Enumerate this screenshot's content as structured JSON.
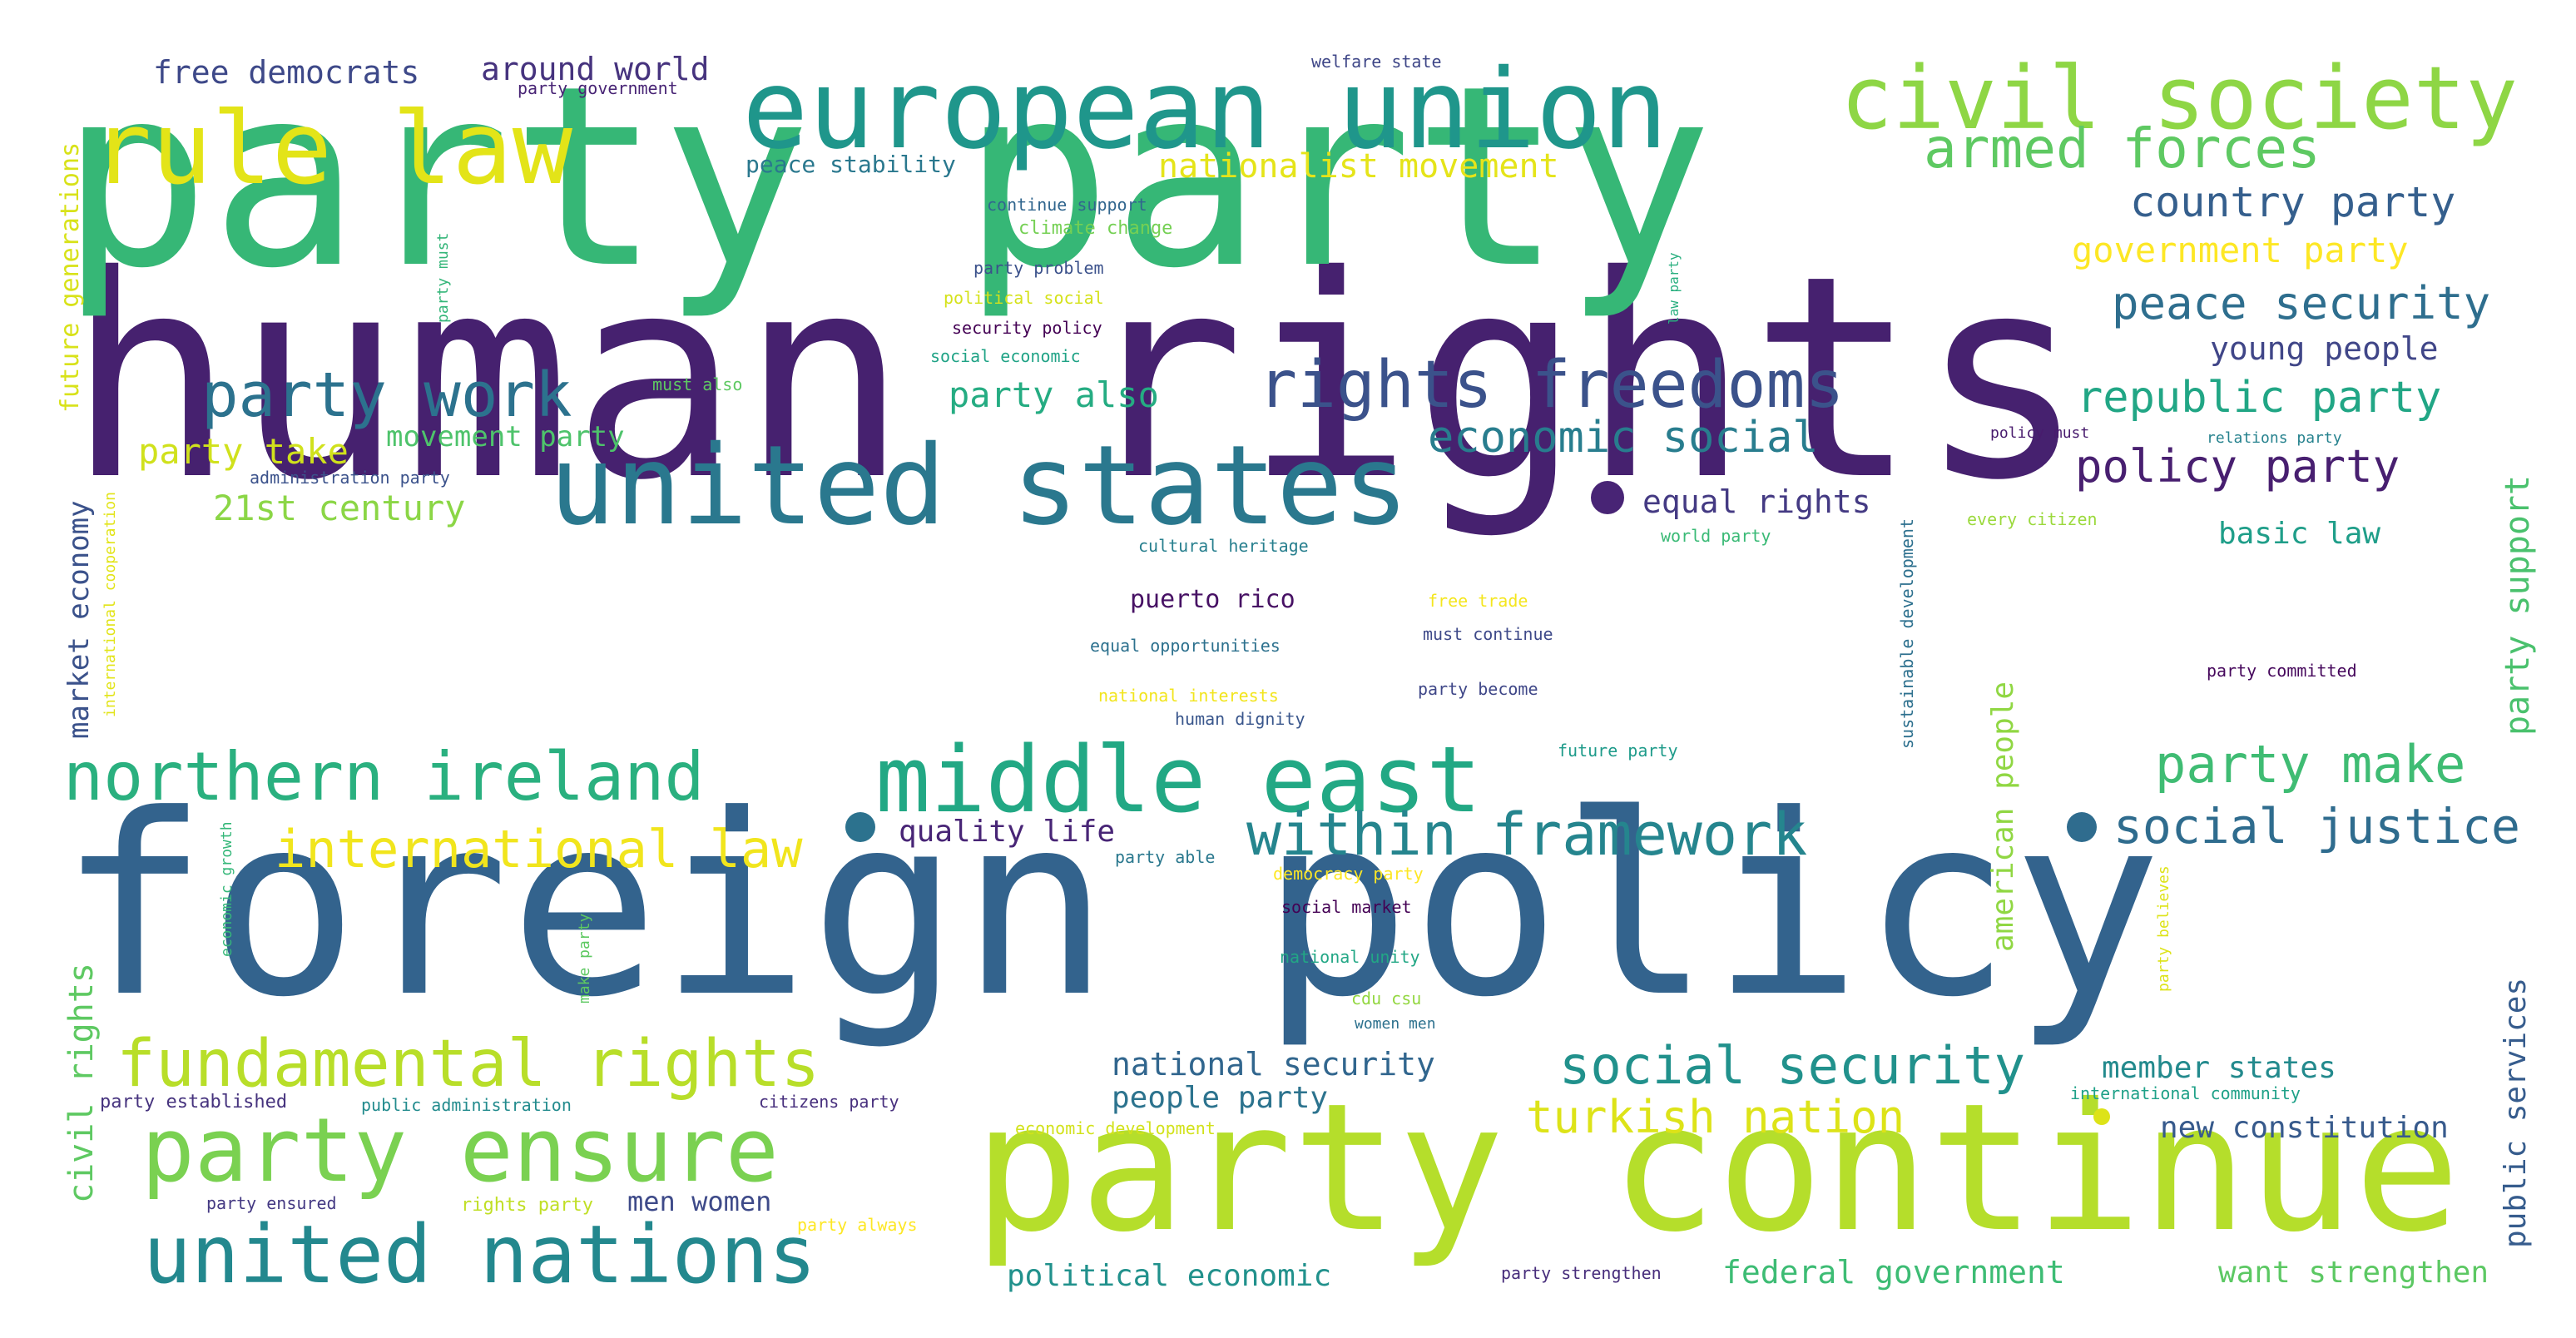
{
  "words": [
    {
      "text": "human rights",
      "color": "#46216f"
    },
    {
      "text": "party party",
      "color": "#36b776"
    },
    {
      "text": "foreign policy",
      "color": "#33638d"
    },
    {
      "text": "party continue",
      "color": "#b5de2b"
    },
    {
      "text": "european union",
      "color": "#1f968b"
    },
    {
      "text": "united states",
      "color": "#2a788e"
    },
    {
      "text": "rule law",
      "color": "#e3e418"
    },
    {
      "text": "civil society",
      "color": "#8ed645"
    },
    {
      "text": "middle east",
      "color": "#22a884"
    },
    {
      "text": "party ensure",
      "color": "#7ad151"
    },
    {
      "text": "united nations",
      "color": "#23888e"
    },
    {
      "text": "northern ireland",
      "color": "#2ab07f"
    },
    {
      "text": "fundamental rights",
      "color": "#b8de29"
    },
    {
      "text": "rights freedoms",
      "color": "#3b528b"
    },
    {
      "text": "party work",
      "color": "#2c728e"
    },
    {
      "text": "within framework",
      "color": "#25858e"
    },
    {
      "text": "social security",
      "color": "#21918c"
    },
    {
      "text": "armed forces",
      "color": "#5ec962"
    },
    {
      "text": "international law",
      "color": "#f1e51d"
    },
    {
      "text": "economic social",
      "color": "#287d8e"
    },
    {
      "text": "party make",
      "color": "#3fbc73"
    },
    {
      "text": "social justice",
      "color": "#2f6c8e"
    },
    {
      "text": "peace security",
      "color": "#2e6e8e"
    },
    {
      "text": "country party",
      "color": "#355f8d"
    },
    {
      "text": "republic party",
      "color": "#21a685"
    },
    {
      "text": "policy party",
      "color": "#481f70"
    },
    {
      "text": "turkish nation",
      "color": "#dde318"
    },
    {
      "text": "government party",
      "color": "#fde725"
    },
    {
      "text": "free democrats",
      "color": "#3e4989"
    },
    {
      "text": "around world",
      "color": "#46337e"
    },
    {
      "text": "nationalist movement",
      "color": "#e5e419"
    },
    {
      "text": "party also",
      "color": "#25ac82"
    },
    {
      "text": "21st century",
      "color": "#8bd646"
    },
    {
      "text": "party take",
      "color": "#d0e11c"
    },
    {
      "text": "movement party",
      "color": "#4ec36b"
    },
    {
      "text": "equal rights",
      "color": "#443a83"
    },
    {
      "text": "young people",
      "color": "#404688"
    },
    {
      "text": "basic law",
      "color": "#1f9e89"
    },
    {
      "text": "quality life",
      "color": "#482576"
    },
    {
      "text": "national security",
      "color": "#31668e"
    },
    {
      "text": "people party",
      "color": "#2c738e"
    },
    {
      "text": "member states",
      "color": "#238a8d"
    },
    {
      "text": "new constitution",
      "color": "#375a8c"
    },
    {
      "text": "federal government",
      "color": "#3dbc74"
    },
    {
      "text": "want strengthen",
      "color": "#5cc863"
    },
    {
      "text": "political economic",
      "color": "#21918c"
    },
    {
      "text": "men women",
      "color": "#3e4a89"
    },
    {
      "text": "puerto rico",
      "color": "#471164"
    },
    {
      "text": "peace stability",
      "color": "#2a788e"
    },
    {
      "text": "market economy",
      "color": "#3b528b"
    },
    {
      "text": "civil rights",
      "color": "#5ec962"
    },
    {
      "text": "future generations",
      "color": "#d8e219"
    },
    {
      "text": "party support",
      "color": "#4ac16d"
    },
    {
      "text": "public services",
      "color": "#365c8d"
    },
    {
      "text": "american people",
      "color": "#90d743"
    },
    {
      "text": "welfare state",
      "color": "#3f4788"
    },
    {
      "text": "party government",
      "color": "#482475"
    },
    {
      "text": "continue support",
      "color": "#31668e"
    },
    {
      "text": "climate change",
      "color": "#75d054"
    },
    {
      "text": "party problem",
      "color": "#3b518b"
    },
    {
      "text": "political social",
      "color": "#d5e21a"
    },
    {
      "text": "security policy",
      "color": "#440154"
    },
    {
      "text": "social economic",
      "color": "#20a386"
    },
    {
      "text": "must also",
      "color": "#5ec962"
    },
    {
      "text": "party must",
      "color": "#34b679"
    },
    {
      "text": "law party",
      "color": "#29af7f"
    },
    {
      "text": "policy must",
      "color": "#481b6d"
    },
    {
      "text": "relations party",
      "color": "#26828e"
    },
    {
      "text": "every citizen",
      "color": "#9bd93c"
    },
    {
      "text": "world party",
      "color": "#3aba76"
    },
    {
      "text": "sustainable development",
      "color": "#2d708e"
    },
    {
      "text": "cultural heritage",
      "color": "#277f8e"
    },
    {
      "text": "free trade",
      "color": "#f4e61e"
    },
    {
      "text": "must continue",
      "color": "#3e4989"
    },
    {
      "text": "equal opportunities",
      "color": "#2d718e"
    },
    {
      "text": "national interests",
      "color": "#f2e51d"
    },
    {
      "text": "party become",
      "color": "#3f4788"
    },
    {
      "text": "party committed",
      "color": "#46085c"
    },
    {
      "text": "human dignity",
      "color": "#39568c"
    },
    {
      "text": "future party",
      "color": "#1e9b8a"
    },
    {
      "text": "international cooperation",
      "color": "#e2e418"
    },
    {
      "text": "administration party",
      "color": "#3b528b"
    },
    {
      "text": "economic growth",
      "color": "#35b779"
    },
    {
      "text": "make party",
      "color": "#5ec962"
    },
    {
      "text": "party able",
      "color": "#2a788e"
    },
    {
      "text": "democracy party",
      "color": "#fde725"
    },
    {
      "text": "social market",
      "color": "#440154"
    },
    {
      "text": "national unity",
      "color": "#22a785"
    },
    {
      "text": "cdu csu",
      "color": "#93d741"
    },
    {
      "text": "women men",
      "color": "#2d718e"
    },
    {
      "text": "party believes",
      "color": "#dde318"
    },
    {
      "text": "international community",
      "color": "#1fa188"
    },
    {
      "text": "party established",
      "color": "#46337e"
    },
    {
      "text": "public administration",
      "color": "#228b8d"
    },
    {
      "text": "citizens party",
      "color": "#472f7d"
    },
    {
      "text": "economic development",
      "color": "#d2e21b"
    },
    {
      "text": "party ensured",
      "color": "#443983"
    },
    {
      "text": "rights party",
      "color": "#c0df25"
    },
    {
      "text": "party always",
      "color": "#fde725"
    },
    {
      "text": "party strengthen",
      "color": "#472d7b"
    }
  ]
}
